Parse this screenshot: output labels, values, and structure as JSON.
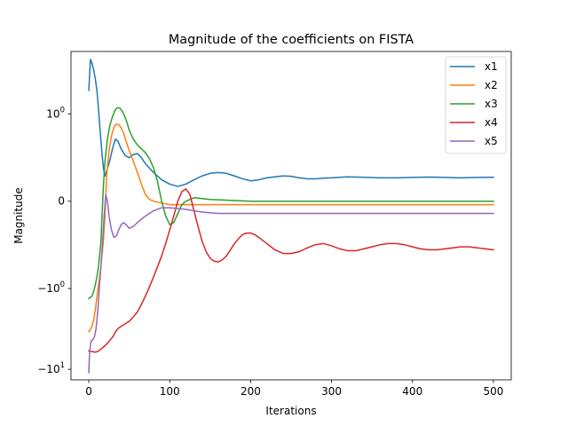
{
  "chart_data": {
    "type": "line",
    "title": "Magnitude of the coefficients on FISTA",
    "xlabel": "Iterations",
    "ylabel": "Magnitude",
    "yscale": "symlog",
    "xlim": [
      -22,
      522
    ],
    "ylim": [
      -13.4,
      6.0
    ],
    "grid": false,
    "legend_placement": "top-right",
    "x_ticks": [
      0,
      100,
      200,
      300,
      400,
      500
    ],
    "x_tick_labels": [
      "0",
      "100",
      "200",
      "300",
      "400",
      "500"
    ],
    "y_ticks": [
      {
        "value": 1,
        "base": "10",
        "exp": "0"
      },
      {
        "value": 0,
        "base": "0",
        "exp": ""
      },
      {
        "value": -1,
        "base": "−10",
        "exp": "0"
      },
      {
        "value": -10,
        "base": "−10",
        "exp": "1"
      }
    ],
    "series": [
      {
        "name": "x1",
        "color": "#1f77b4",
        "points": [
          [
            0,
            2.0
          ],
          [
            2,
            4.8
          ],
          [
            4,
            4.3
          ],
          [
            6,
            3.6
          ],
          [
            8,
            2.8
          ],
          [
            10,
            2.0
          ],
          [
            12,
            1.15
          ],
          [
            14,
            0.6
          ],
          [
            16,
            0.3
          ],
          [
            18,
            0.15
          ],
          [
            20,
            0.1
          ],
          [
            25,
            0.18
          ],
          [
            30,
            0.35
          ],
          [
            33,
            0.45
          ],
          [
            36,
            0.42
          ],
          [
            40,
            0.32
          ],
          [
            45,
            0.25
          ],
          [
            50,
            0.23
          ],
          [
            55,
            0.26
          ],
          [
            60,
            0.27
          ],
          [
            65,
            0.23
          ],
          [
            70,
            0.18
          ],
          [
            80,
            0.12
          ],
          [
            90,
            0.08
          ],
          [
            100,
            0.06
          ],
          [
            110,
            0.05
          ],
          [
            120,
            0.06
          ],
          [
            130,
            0.08
          ],
          [
            140,
            0.1
          ],
          [
            150,
            0.115
          ],
          [
            160,
            0.12
          ],
          [
            170,
            0.115
          ],
          [
            180,
            0.1
          ],
          [
            190,
            0.085
          ],
          [
            200,
            0.075
          ],
          [
            210,
            0.08
          ],
          [
            220,
            0.09
          ],
          [
            230,
            0.095
          ],
          [
            240,
            0.1
          ],
          [
            250,
            0.098
          ],
          [
            260,
            0.09
          ],
          [
            270,
            0.085
          ],
          [
            280,
            0.085
          ],
          [
            290,
            0.088
          ],
          [
            300,
            0.09
          ],
          [
            320,
            0.095
          ],
          [
            340,
            0.093
          ],
          [
            360,
            0.09
          ],
          [
            380,
            0.09
          ],
          [
            400,
            0.092
          ],
          [
            420,
            0.094
          ],
          [
            440,
            0.092
          ],
          [
            460,
            0.09
          ],
          [
            480,
            0.092
          ],
          [
            500,
            0.093
          ]
        ]
      },
      {
        "name": "x2",
        "color": "#ff7f0e",
        "points": [
          [
            0,
            -3.5
          ],
          [
            2,
            -3.3
          ],
          [
            4,
            -3.0
          ],
          [
            6,
            -2.5
          ],
          [
            8,
            -1.9
          ],
          [
            10,
            -1.3
          ],
          [
            12,
            -0.9
          ],
          [
            15,
            -0.5
          ],
          [
            18,
            -0.2
          ],
          [
            20,
            -0.05
          ],
          [
            22,
            0.1
          ],
          [
            25,
            0.3
          ],
          [
            28,
            0.5
          ],
          [
            31,
            0.66
          ],
          [
            34,
            0.73
          ],
          [
            37,
            0.72
          ],
          [
            40,
            0.65
          ],
          [
            43,
            0.55
          ],
          [
            46,
            0.42
          ],
          [
            50,
            0.3
          ],
          [
            55,
            0.2
          ],
          [
            60,
            0.12
          ],
          [
            65,
            0.06
          ],
          [
            70,
            0.02
          ],
          [
            75,
            0.005
          ],
          [
            80,
            0.0
          ],
          [
            90,
            -0.005
          ],
          [
            100,
            -0.01
          ],
          [
            120,
            -0.01
          ],
          [
            150,
            -0.01
          ],
          [
            200,
            -0.01
          ],
          [
            300,
            -0.01
          ],
          [
            400,
            -0.01
          ],
          [
            500,
            -0.01
          ]
        ]
      },
      {
        "name": "x3",
        "color": "#2ca02c",
        "points": [
          [
            0,
            -1.35
          ],
          [
            2,
            -1.3
          ],
          [
            4,
            -1.25
          ],
          [
            6,
            -1.1
          ],
          [
            8,
            -0.9
          ],
          [
            10,
            -0.7
          ],
          [
            12,
            -0.5
          ],
          [
            15,
            -0.2
          ],
          [
            18,
            0.05
          ],
          [
            20,
            0.2
          ],
          [
            23,
            0.45
          ],
          [
            26,
            0.7
          ],
          [
            29,
            0.9
          ],
          [
            32,
            1.1
          ],
          [
            35,
            1.2
          ],
          [
            38,
            1.2
          ],
          [
            41,
            1.1
          ],
          [
            44,
            0.95
          ],
          [
            47,
            0.78
          ],
          [
            50,
            0.6
          ],
          [
            55,
            0.45
          ],
          [
            60,
            0.37
          ],
          [
            65,
            0.32
          ],
          [
            70,
            0.28
          ],
          [
            75,
            0.22
          ],
          [
            80,
            0.15
          ],
          [
            85,
            0.07
          ],
          [
            90,
            0.0
          ],
          [
            95,
            -0.05
          ],
          [
            100,
            -0.09
          ],
          [
            105,
            -0.08
          ],
          [
            110,
            -0.04
          ],
          [
            115,
            -0.01
          ],
          [
            120,
            0.0
          ],
          [
            130,
            0.01
          ],
          [
            150,
            0.005
          ],
          [
            200,
            0.0
          ],
          [
            300,
            0.0
          ],
          [
            400,
            0.0
          ],
          [
            500,
            0.0
          ]
        ]
      },
      {
        "name": "x4",
        "color": "#d62728",
        "points": [
          [
            0,
            -6.0
          ],
          [
            2,
            -6.05
          ],
          [
            5,
            -6.15
          ],
          [
            8,
            -6.2
          ],
          [
            11,
            -6.1
          ],
          [
            15,
            -5.7
          ],
          [
            20,
            -5.2
          ],
          [
            25,
            -4.6
          ],
          [
            30,
            -4.0
          ],
          [
            33,
            -3.5
          ],
          [
            36,
            -3.2
          ],
          [
            40,
            -3.0
          ],
          [
            45,
            -2.8
          ],
          [
            50,
            -2.6
          ],
          [
            55,
            -2.3
          ],
          [
            60,
            -2.0
          ],
          [
            65,
            -1.6
          ],
          [
            70,
            -1.25
          ],
          [
            75,
            -0.95
          ],
          [
            80,
            -0.7
          ],
          [
            85,
            -0.5
          ],
          [
            90,
            -0.35
          ],
          [
            95,
            -0.22
          ],
          [
            100,
            -0.12
          ],
          [
            105,
            -0.05
          ],
          [
            110,
            0.0
          ],
          [
            115,
            0.03
          ],
          [
            120,
            0.04
          ],
          [
            125,
            0.02
          ],
          [
            130,
            -0.03
          ],
          [
            135,
            -0.1
          ],
          [
            140,
            -0.2
          ],
          [
            145,
            -0.3
          ],
          [
            150,
            -0.38
          ],
          [
            155,
            -0.42
          ],
          [
            160,
            -0.43
          ],
          [
            165,
            -0.4
          ],
          [
            170,
            -0.35
          ],
          [
            175,
            -0.28
          ],
          [
            180,
            -0.22
          ],
          [
            185,
            -0.18
          ],
          [
            190,
            -0.15
          ],
          [
            195,
            -0.14
          ],
          [
            200,
            -0.14
          ],
          [
            205,
            -0.15
          ],
          [
            210,
            -0.17
          ],
          [
            220,
            -0.22
          ],
          [
            230,
            -0.28
          ],
          [
            240,
            -0.32
          ],
          [
            250,
            -0.32
          ],
          [
            260,
            -0.3
          ],
          [
            270,
            -0.26
          ],
          [
            280,
            -0.23
          ],
          [
            290,
            -0.22
          ],
          [
            300,
            -0.24
          ],
          [
            310,
            -0.27
          ],
          [
            320,
            -0.29
          ],
          [
            330,
            -0.29
          ],
          [
            340,
            -0.27
          ],
          [
            350,
            -0.25
          ],
          [
            360,
            -0.23
          ],
          [
            370,
            -0.22
          ],
          [
            380,
            -0.22
          ],
          [
            390,
            -0.23
          ],
          [
            400,
            -0.25
          ],
          [
            410,
            -0.27
          ],
          [
            420,
            -0.28
          ],
          [
            430,
            -0.28
          ],
          [
            440,
            -0.27
          ],
          [
            450,
            -0.26
          ],
          [
            460,
            -0.25
          ],
          [
            470,
            -0.25
          ],
          [
            480,
            -0.26
          ],
          [
            490,
            -0.27
          ],
          [
            500,
            -0.28
          ]
        ]
      },
      {
        "name": "x5",
        "color": "#9467bd",
        "points": [
          [
            0,
            -11.0
          ],
          [
            1,
            -6.0
          ],
          [
            3,
            -4.5
          ],
          [
            5,
            -4.4
          ],
          [
            7,
            -4.0
          ],
          [
            9,
            -3.2
          ],
          [
            11,
            -2.0
          ],
          [
            13,
            -1.0
          ],
          [
            15,
            -0.5
          ],
          [
            17,
            -0.2
          ],
          [
            19,
            -0.05
          ],
          [
            21,
            0.02
          ],
          [
            23,
            0.0
          ],
          [
            25,
            -0.05
          ],
          [
            28,
            -0.12
          ],
          [
            31,
            -0.17
          ],
          [
            34,
            -0.16
          ],
          [
            37,
            -0.12
          ],
          [
            40,
            -0.09
          ],
          [
            43,
            -0.08
          ],
          [
            46,
            -0.09
          ],
          [
            50,
            -0.11
          ],
          [
            55,
            -0.1
          ],
          [
            60,
            -0.08
          ],
          [
            70,
            -0.05
          ],
          [
            80,
            -0.03
          ],
          [
            90,
            -0.02
          ],
          [
            100,
            -0.02
          ],
          [
            120,
            -0.025
          ],
          [
            140,
            -0.035
          ],
          [
            160,
            -0.04
          ],
          [
            200,
            -0.04
          ],
          [
            300,
            -0.04
          ],
          [
            400,
            -0.04
          ],
          [
            500,
            -0.04
          ]
        ]
      }
    ]
  }
}
